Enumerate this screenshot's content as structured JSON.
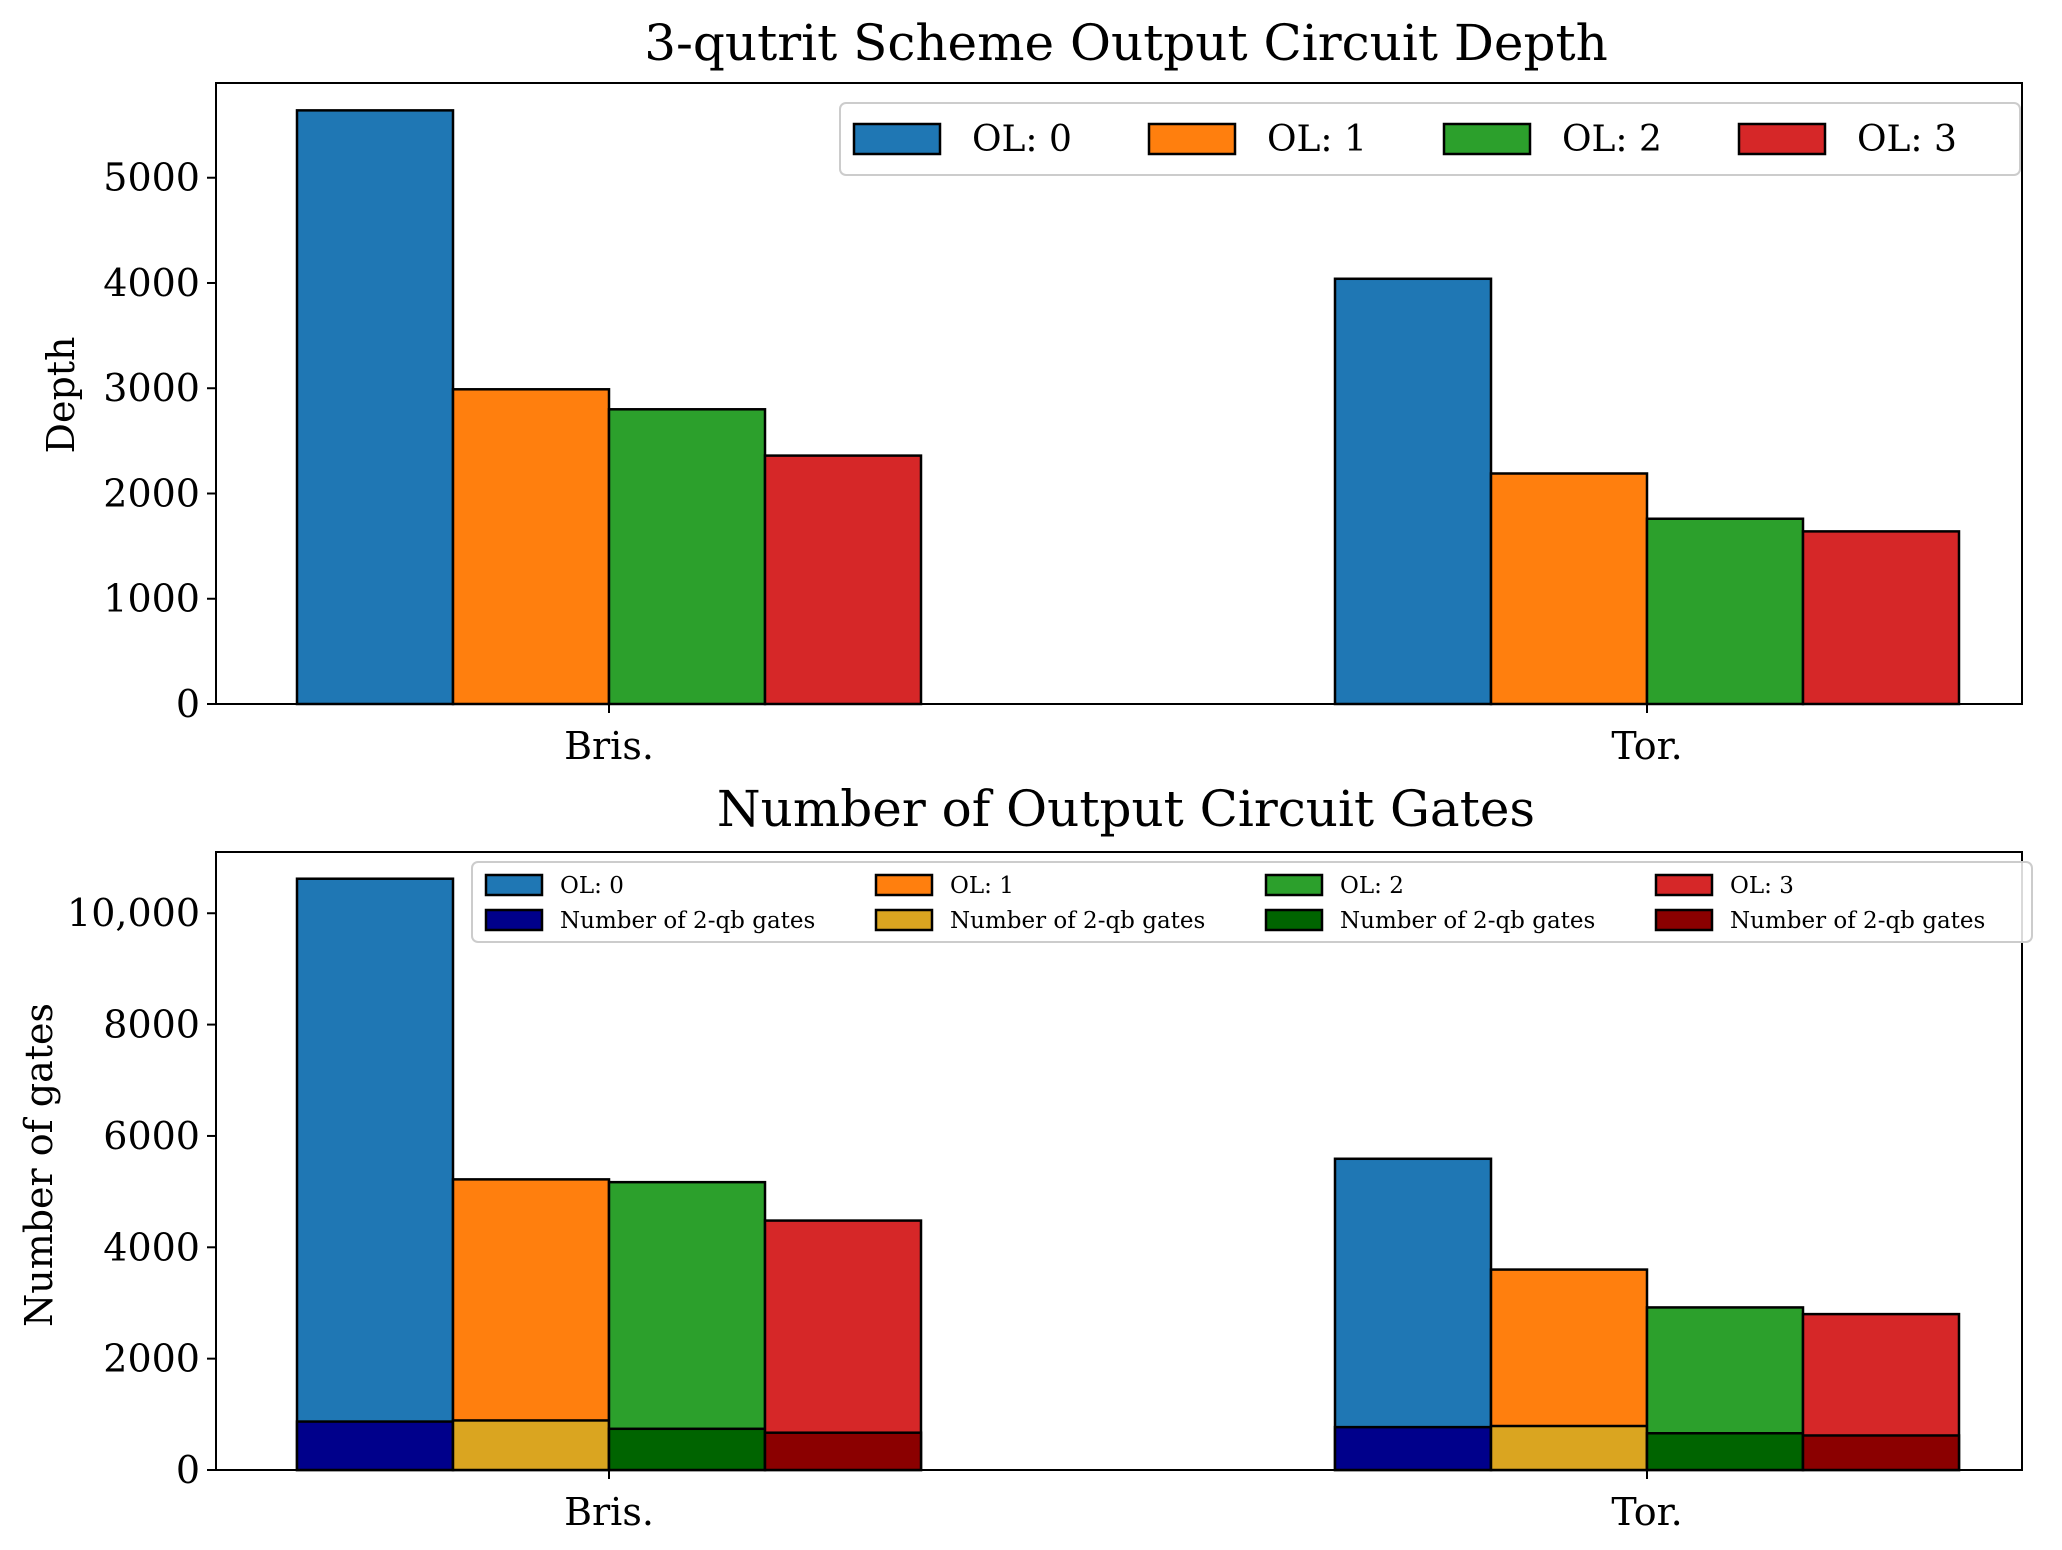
{
  "chart_data": [
    {
      "type": "bar",
      "title": "3-qutrit Scheme Output Circuit Depth",
      "xlabel": "",
      "ylabel": "Depth",
      "categories": [
        "Bris.",
        "Tor."
      ],
      "ylim": [
        0,
        5900
      ],
      "yticks": [
        0,
        1000,
        2000,
        3000,
        4000,
        5000
      ],
      "ytick_labels": [
        "0",
        "1000",
        "2000",
        "3000",
        "4000",
        "5000"
      ],
      "legend_placement": "top-right",
      "series": [
        {
          "name": "OL: 0",
          "color": "#1f77b4",
          "values": [
            5640,
            4040
          ]
        },
        {
          "name": "OL: 1",
          "color": "#ff7f0e",
          "values": [
            2990,
            2190
          ]
        },
        {
          "name": "OL: 2",
          "color": "#2ca02c",
          "values": [
            2800,
            1760
          ]
        },
        {
          "name": "OL: 3",
          "color": "#d62728",
          "values": [
            2360,
            1640
          ]
        }
      ]
    },
    {
      "type": "bar",
      "title": "Number of Output Circuit Gates",
      "xlabel": "",
      "ylabel": "Number of gates",
      "categories": [
        "Bris.",
        "Tor."
      ],
      "ylim": [
        0,
        11100
      ],
      "yticks": [
        0,
        2000,
        4000,
        6000,
        8000,
        10000
      ],
      "ytick_labels": [
        "0",
        "2000",
        "4000",
        "6000",
        "8000",
        "10,000"
      ],
      "legend_placement": "top-right",
      "series": [
        {
          "name": "OL: 0",
          "color": "#1f77b4",
          "values": [
            10620,
            5590
          ],
          "overlay_name": "Number of 2-qb gates",
          "overlay_color": "#00008b",
          "overlay_values": [
            870,
            770
          ]
        },
        {
          "name": "OL: 1",
          "color": "#ff7f0e",
          "values": [
            5220,
            3600
          ],
          "overlay_name": "Number of 2-qb gates",
          "overlay_color": "#daa520",
          "overlay_values": [
            890,
            790
          ]
        },
        {
          "name": "OL: 2",
          "color": "#2ca02c",
          "values": [
            5170,
            2920
          ],
          "overlay_name": "Number of 2-qb gates",
          "overlay_color": "#006400",
          "overlay_values": [
            740,
            660
          ]
        },
        {
          "name": "OL: 3",
          "color": "#d62728",
          "values": [
            4480,
            2800
          ],
          "overlay_name": "Number of 2-qb gates",
          "overlay_color": "#8b0000",
          "overlay_values": [
            670,
            620
          ]
        }
      ]
    }
  ]
}
